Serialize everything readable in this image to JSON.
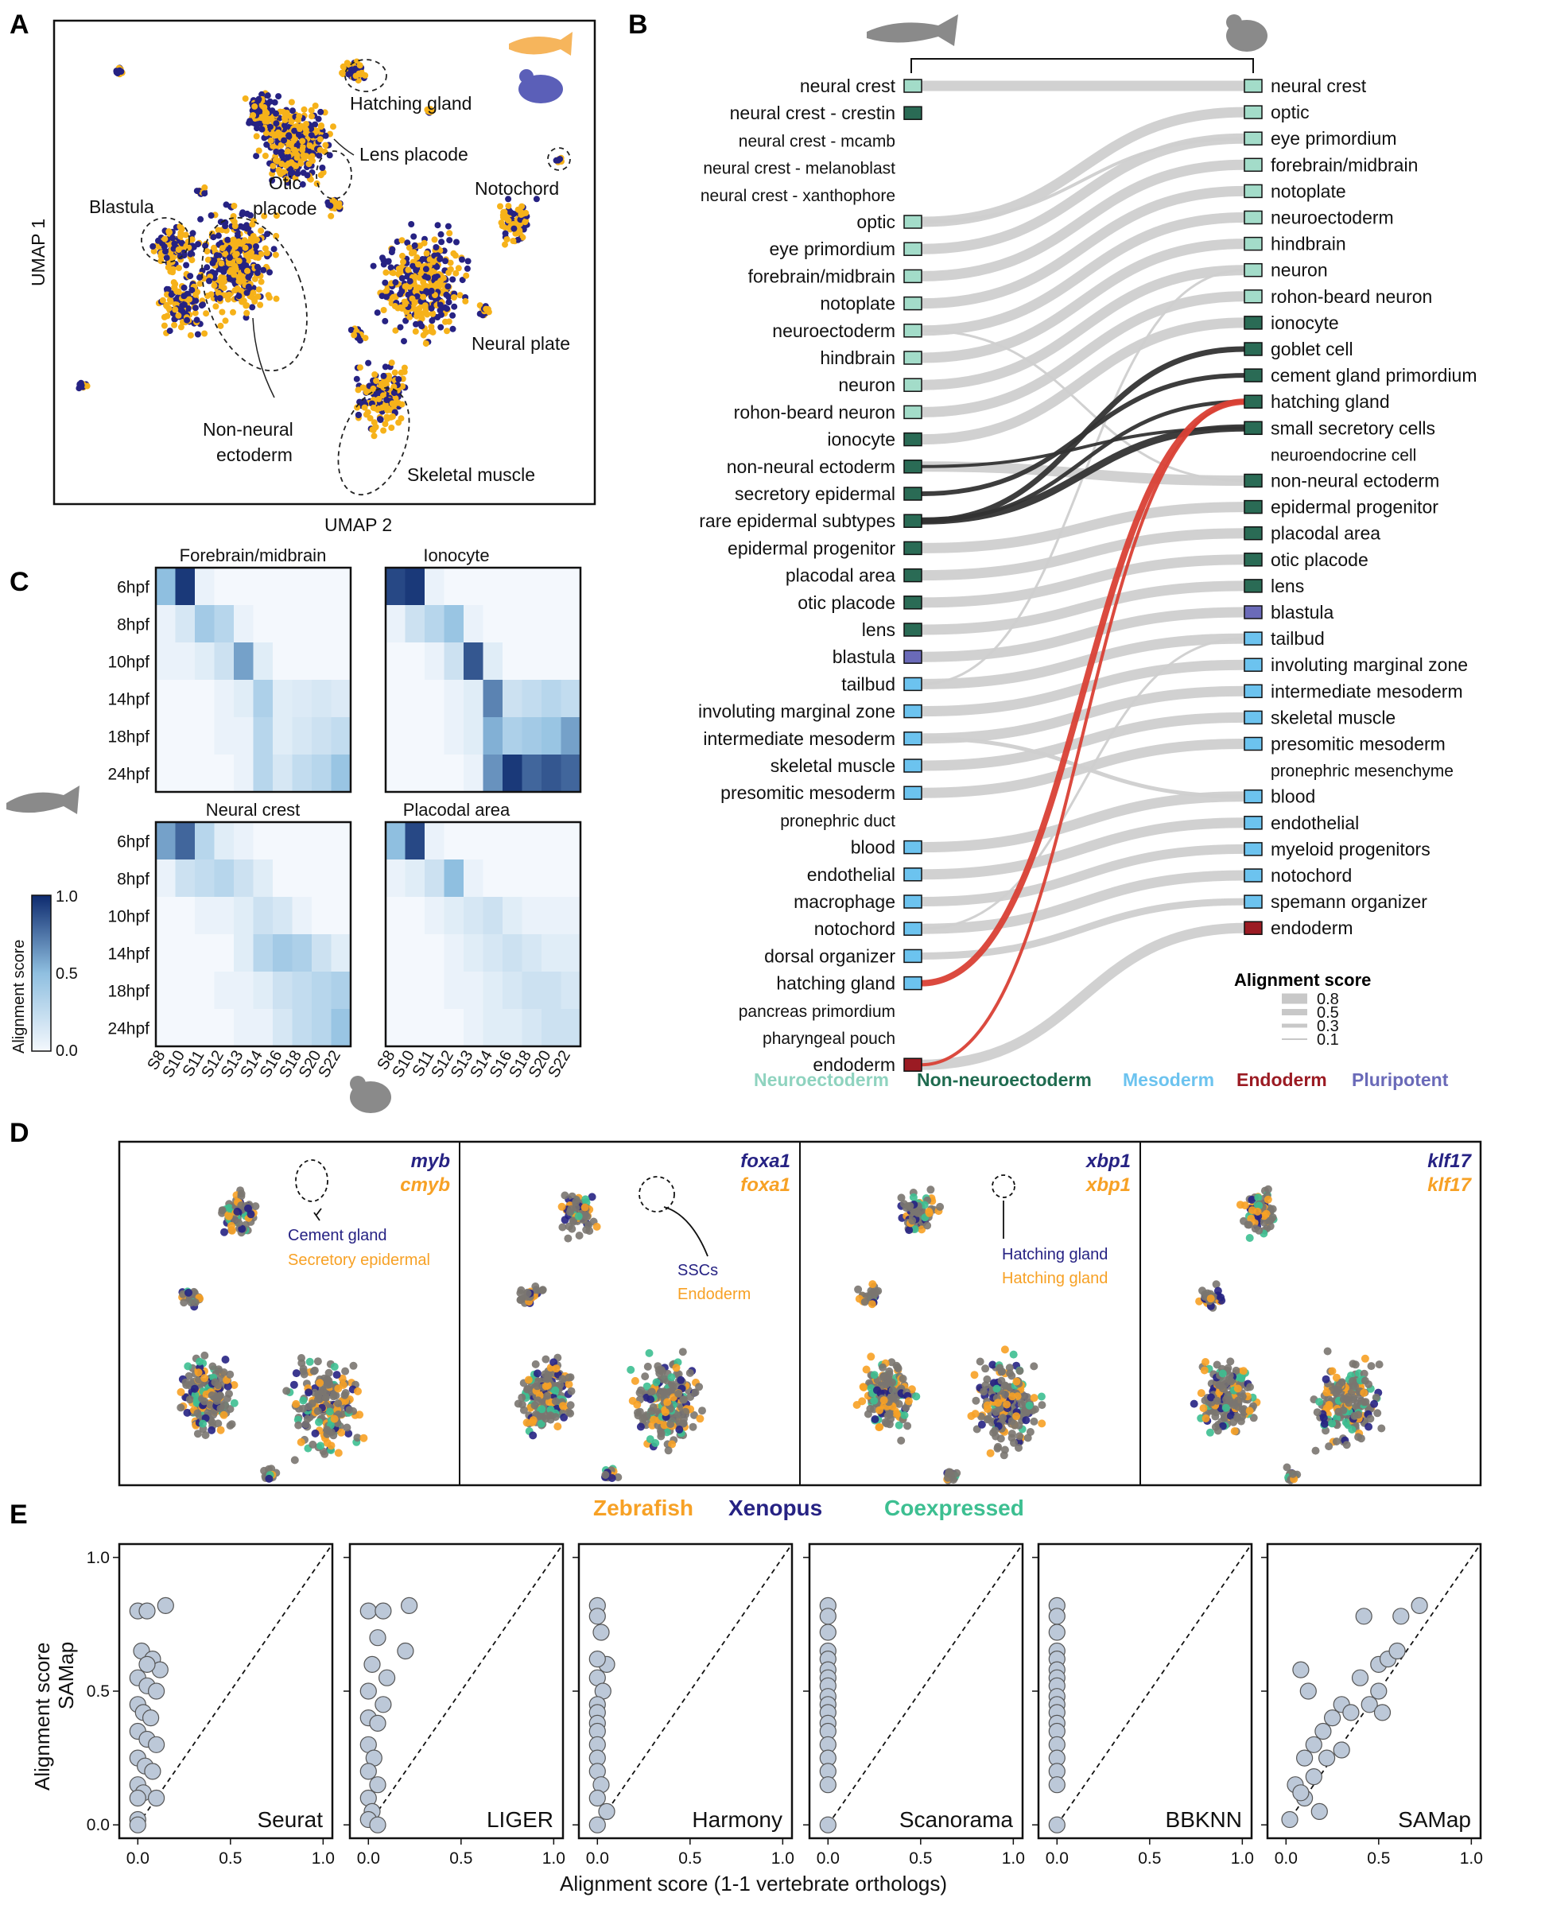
{
  "panel_labels": {
    "a": "A",
    "b": "B",
    "c": "C",
    "d": "D",
    "e": "E"
  },
  "panelA": {
    "xlabel": "UMAP 2",
    "ylabel": "UMAP 1",
    "annotations": [
      "Hatching gland",
      "Lens placode",
      "Otic",
      "placode",
      "Notochord",
      "Blastula",
      "Neural plate",
      "Non-neural",
      "ectoderm",
      "Skeletal muscle"
    ],
    "colors": {
      "zebrafish": "#f6b21a",
      "xenopus": "#262283"
    }
  },
  "panelB": {
    "zebrafish_types": [
      {
        "name": "neural crest",
        "group": "neuro"
      },
      {
        "name": "neural crest - crestin",
        "group": "non"
      },
      {
        "name": "neural crest - mcamb",
        "group": ""
      },
      {
        "name": "neural crest - melanoblast",
        "group": ""
      },
      {
        "name": "neural crest - xanthophore",
        "group": ""
      },
      {
        "name": "optic",
        "group": "neuro"
      },
      {
        "name": "eye primordium",
        "group": "neuro"
      },
      {
        "name": "forebrain/midbrain",
        "group": "neuro"
      },
      {
        "name": "notoplate",
        "group": "neuro"
      },
      {
        "name": "neuroectoderm",
        "group": "neuro"
      },
      {
        "name": "hindbrain",
        "group": "neuro"
      },
      {
        "name": "neuron",
        "group": "neuro"
      },
      {
        "name": "rohon-beard neuron",
        "group": "neuro"
      },
      {
        "name": "ionocyte",
        "group": "non"
      },
      {
        "name": "non-neural ectoderm",
        "group": "non"
      },
      {
        "name": "secretory epidermal",
        "group": "non"
      },
      {
        "name": "rare epidermal subtypes",
        "group": "non"
      },
      {
        "name": "epidermal progenitor",
        "group": "non"
      },
      {
        "name": "placodal area",
        "group": "non"
      },
      {
        "name": "otic placode",
        "group": "non"
      },
      {
        "name": "lens",
        "group": "non"
      },
      {
        "name": "blastula",
        "group": "pluri"
      },
      {
        "name": "tailbud",
        "group": "meso"
      },
      {
        "name": "involuting marginal zone",
        "group": "meso"
      },
      {
        "name": "intermediate mesoderm",
        "group": "meso"
      },
      {
        "name": "skeletal muscle",
        "group": "meso"
      },
      {
        "name": "presomitic mesoderm",
        "group": "meso"
      },
      {
        "name": "pronephric duct",
        "group": ""
      },
      {
        "name": "blood",
        "group": "meso"
      },
      {
        "name": "endothelial",
        "group": "meso"
      },
      {
        "name": "macrophage",
        "group": "meso"
      },
      {
        "name": "notochord",
        "group": "meso"
      },
      {
        "name": "dorsal organizer",
        "group": "meso"
      },
      {
        "name": "hatching gland",
        "group": "meso"
      },
      {
        "name": "pancreas primordium",
        "group": ""
      },
      {
        "name": "pharyngeal pouch",
        "group": ""
      },
      {
        "name": "endoderm",
        "group": "endo"
      }
    ],
    "xenopus_types": [
      {
        "name": "neural crest",
        "group": "neuro"
      },
      {
        "name": "optic",
        "group": "neuro"
      },
      {
        "name": "eye primordium",
        "group": "neuro"
      },
      {
        "name": "forebrain/midbrain",
        "group": "neuro"
      },
      {
        "name": "notoplate",
        "group": "neuro"
      },
      {
        "name": "neuroectoderm",
        "group": "neuro"
      },
      {
        "name": "hindbrain",
        "group": "neuro"
      },
      {
        "name": "neuron",
        "group": "neuro"
      },
      {
        "name": "rohon-beard neuron",
        "group": "neuro"
      },
      {
        "name": "ionocyte",
        "group": "non"
      },
      {
        "name": "goblet cell",
        "group": "non"
      },
      {
        "name": "cement gland primordium",
        "group": "non"
      },
      {
        "name": "hatching gland",
        "group": "non"
      },
      {
        "name": "small secretory cells",
        "group": "non"
      },
      {
        "name": "neuroendocrine cell",
        "group": ""
      },
      {
        "name": "non-neural ectoderm",
        "group": "non"
      },
      {
        "name": "epidermal progenitor",
        "group": "non"
      },
      {
        "name": "placodal area",
        "group": "non"
      },
      {
        "name": "otic placode",
        "group": "non"
      },
      {
        "name": "lens",
        "group": "non"
      },
      {
        "name": "blastula",
        "group": "pluri"
      },
      {
        "name": "tailbud",
        "group": "meso"
      },
      {
        "name": "involuting marginal zone",
        "group": "meso"
      },
      {
        "name": "intermediate mesoderm",
        "group": "meso"
      },
      {
        "name": "skeletal muscle",
        "group": "meso"
      },
      {
        "name": "presomitic mesoderm",
        "group": "meso"
      },
      {
        "name": "pronephric mesenchyme",
        "group": ""
      },
      {
        "name": "blood",
        "group": "meso"
      },
      {
        "name": "endothelial",
        "group": "meso"
      },
      {
        "name": "myeloid progenitors",
        "group": "meso"
      },
      {
        "name": "notochord",
        "group": "meso"
      },
      {
        "name": "spemann organizer",
        "group": "meso"
      },
      {
        "name": "endoderm",
        "group": "endo"
      }
    ],
    "legend_title": "Alignment score",
    "legend_values": [
      "0.8",
      "0.5",
      "0.3",
      "0.1"
    ],
    "categories": [
      {
        "label": "Neuroectoderm",
        "color": "#8fd3bf"
      },
      {
        "label": "Non-neuroectoderm",
        "color": "#1f6b4f"
      },
      {
        "label": "Mesoderm",
        "color": "#6cc3ef"
      },
      {
        "label": "Endoderm",
        "color": "#9b1b23"
      },
      {
        "label": "Pluripotent",
        "color": "#6a6ab8"
      }
    ]
  },
  "panelC": {
    "titles": [
      "Forebrain/midbrain",
      "Ionocyte",
      "Neural crest",
      "Placodal area"
    ],
    "rows": [
      "6hpf",
      "8hpf",
      "10hpf",
      "14hpf",
      "18hpf",
      "24hpf"
    ],
    "cols": [
      "S8",
      "S10",
      "S11",
      "S12",
      "S13",
      "S14",
      "S16",
      "S18",
      "S20",
      "S22"
    ],
    "colorbar_label": "Alignment score",
    "colorbar_ticks": [
      "1.0",
      "0.5",
      "0.0"
    ]
  },
  "panelD": {
    "genes": [
      {
        "xen": "myb",
        "zf": "cmyb",
        "ann1": "Cement gland",
        "ann2": "Secretory epidermal"
      },
      {
        "xen": "foxa1",
        "zf": "foxa1",
        "ann1": "SSCs",
        "ann2": "Endoderm"
      },
      {
        "xen": "xbp1",
        "zf": "xbp1",
        "ann1": "Hatching gland",
        "ann2": "Hatching gland"
      },
      {
        "xen": "klf17",
        "zf": "klf17",
        "ann1": "",
        "ann2": ""
      }
    ],
    "legend": [
      {
        "label": "Zebrafish",
        "color": "#f7a125"
      },
      {
        "label": "Xenopus",
        "color": "#262283"
      },
      {
        "label": "Coexpressed",
        "color": "#3dbf91"
      }
    ]
  },
  "panelE": {
    "methods": [
      "Seurat",
      "LIGER",
      "Harmony",
      "Scanorama",
      "BBKNN",
      "SAMap"
    ],
    "ylabel": "Alignment score",
    "ylabel2": "SAMap",
    "xlabel": "Alignment score (1-1 vertebrate orthologs)",
    "xticks": [
      "0.0",
      "0.5",
      "1.0"
    ],
    "yticks": [
      "1.0",
      "0.5",
      "0.0"
    ]
  },
  "chart_data": [
    {
      "type": "scatter",
      "title": "Seurat",
      "xlabel": "Alignment score (1-1 vertebrate orthologs)",
      "ylabel": "Alignment score SAMap",
      "xlim": [
        -0.1,
        1.05
      ],
      "ylim": [
        -0.05,
        1.05
      ],
      "x": [
        0.0,
        0.05,
        0.15,
        0.02,
        0.08,
        0.12,
        0.0,
        0.05,
        0.1,
        0.0,
        0.03,
        0.07,
        0.0,
        0.05,
        0.1,
        0.0,
        0.04,
        0.08,
        0.0,
        0.03,
        0.0,
        0.1,
        0.0,
        0.0,
        0.05
      ],
      "y": [
        0.8,
        0.8,
        0.82,
        0.65,
        0.62,
        0.58,
        0.55,
        0.52,
        0.5,
        0.45,
        0.42,
        0.4,
        0.35,
        0.32,
        0.3,
        0.25,
        0.22,
        0.2,
        0.15,
        0.12,
        0.1,
        0.1,
        0.02,
        0.0,
        0.6
      ]
    },
    {
      "type": "scatter",
      "title": "LIGER",
      "xlim": [
        -0.1,
        1.05
      ],
      "ylim": [
        -0.05,
        1.05
      ],
      "x": [
        0.0,
        0.08,
        0.22,
        0.05,
        0.2,
        0.02,
        0.1,
        0.0,
        0.08,
        0.0,
        0.05,
        0.0,
        0.03,
        0.0,
        0.05,
        0.0,
        0.02,
        0.0,
        0.05
      ],
      "y": [
        0.8,
        0.8,
        0.82,
        0.7,
        0.65,
        0.6,
        0.55,
        0.5,
        0.45,
        0.4,
        0.38,
        0.3,
        0.25,
        0.2,
        0.15,
        0.1,
        0.05,
        0.02,
        0.0
      ]
    },
    {
      "type": "scatter",
      "title": "Harmony",
      "xlim": [
        -0.1,
        1.05
      ],
      "ylim": [
        -0.05,
        1.05
      ],
      "x": [
        0.0,
        0.0,
        0.02,
        0.05,
        0.0,
        0.0,
        0.03,
        0.0,
        0.0,
        0.0,
        0.0,
        0.0,
        0.0,
        0.0,
        0.02,
        0.0,
        0.05,
        0.0
      ],
      "y": [
        0.82,
        0.78,
        0.72,
        0.6,
        0.62,
        0.55,
        0.5,
        0.45,
        0.42,
        0.38,
        0.35,
        0.3,
        0.25,
        0.2,
        0.15,
        0.1,
        0.05,
        0.0
      ]
    },
    {
      "type": "scatter",
      "title": "Scanorama",
      "xlim": [
        -0.1,
        1.05
      ],
      "ylim": [
        -0.05,
        1.05
      ],
      "x": [
        0,
        0,
        0,
        0,
        0,
        0,
        0,
        0,
        0,
        0,
        0,
        0,
        0,
        0,
        0,
        0,
        0,
        0
      ],
      "y": [
        0.82,
        0.78,
        0.72,
        0.65,
        0.62,
        0.58,
        0.55,
        0.52,
        0.48,
        0.45,
        0.42,
        0.38,
        0.35,
        0.3,
        0.25,
        0.2,
        0.15,
        0.0
      ]
    },
    {
      "type": "scatter",
      "title": "BBKNN",
      "xlim": [
        -0.1,
        1.05
      ],
      "ylim": [
        -0.05,
        1.05
      ],
      "x": [
        0,
        0,
        0,
        0,
        0,
        0,
        0,
        0,
        0,
        0,
        0,
        0,
        0,
        0,
        0,
        0,
        0,
        0
      ],
      "y": [
        0.82,
        0.78,
        0.72,
        0.65,
        0.62,
        0.58,
        0.55,
        0.52,
        0.48,
        0.45,
        0.42,
        0.38,
        0.35,
        0.3,
        0.25,
        0.2,
        0.15,
        0.0
      ]
    },
    {
      "type": "scatter",
      "title": "SAMap",
      "xlim": [
        -0.1,
        1.05
      ],
      "ylim": [
        -0.05,
        1.05
      ],
      "x": [
        0.72,
        0.62,
        0.5,
        0.4,
        0.55,
        0.6,
        0.5,
        0.45,
        0.52,
        0.3,
        0.35,
        0.25,
        0.2,
        0.15,
        0.1,
        0.08,
        0.12,
        0.05,
        0.1,
        0.18,
        0.22,
        0.3,
        0.42,
        0.15,
        0.08,
        0.02
      ],
      "y": [
        0.82,
        0.78,
        0.6,
        0.55,
        0.62,
        0.65,
        0.5,
        0.45,
        0.42,
        0.45,
        0.42,
        0.4,
        0.35,
        0.3,
        0.25,
        0.58,
        0.5,
        0.15,
        0.1,
        0.05,
        0.25,
        0.28,
        0.78,
        0.18,
        0.12,
        0.02
      ]
    }
  ]
}
